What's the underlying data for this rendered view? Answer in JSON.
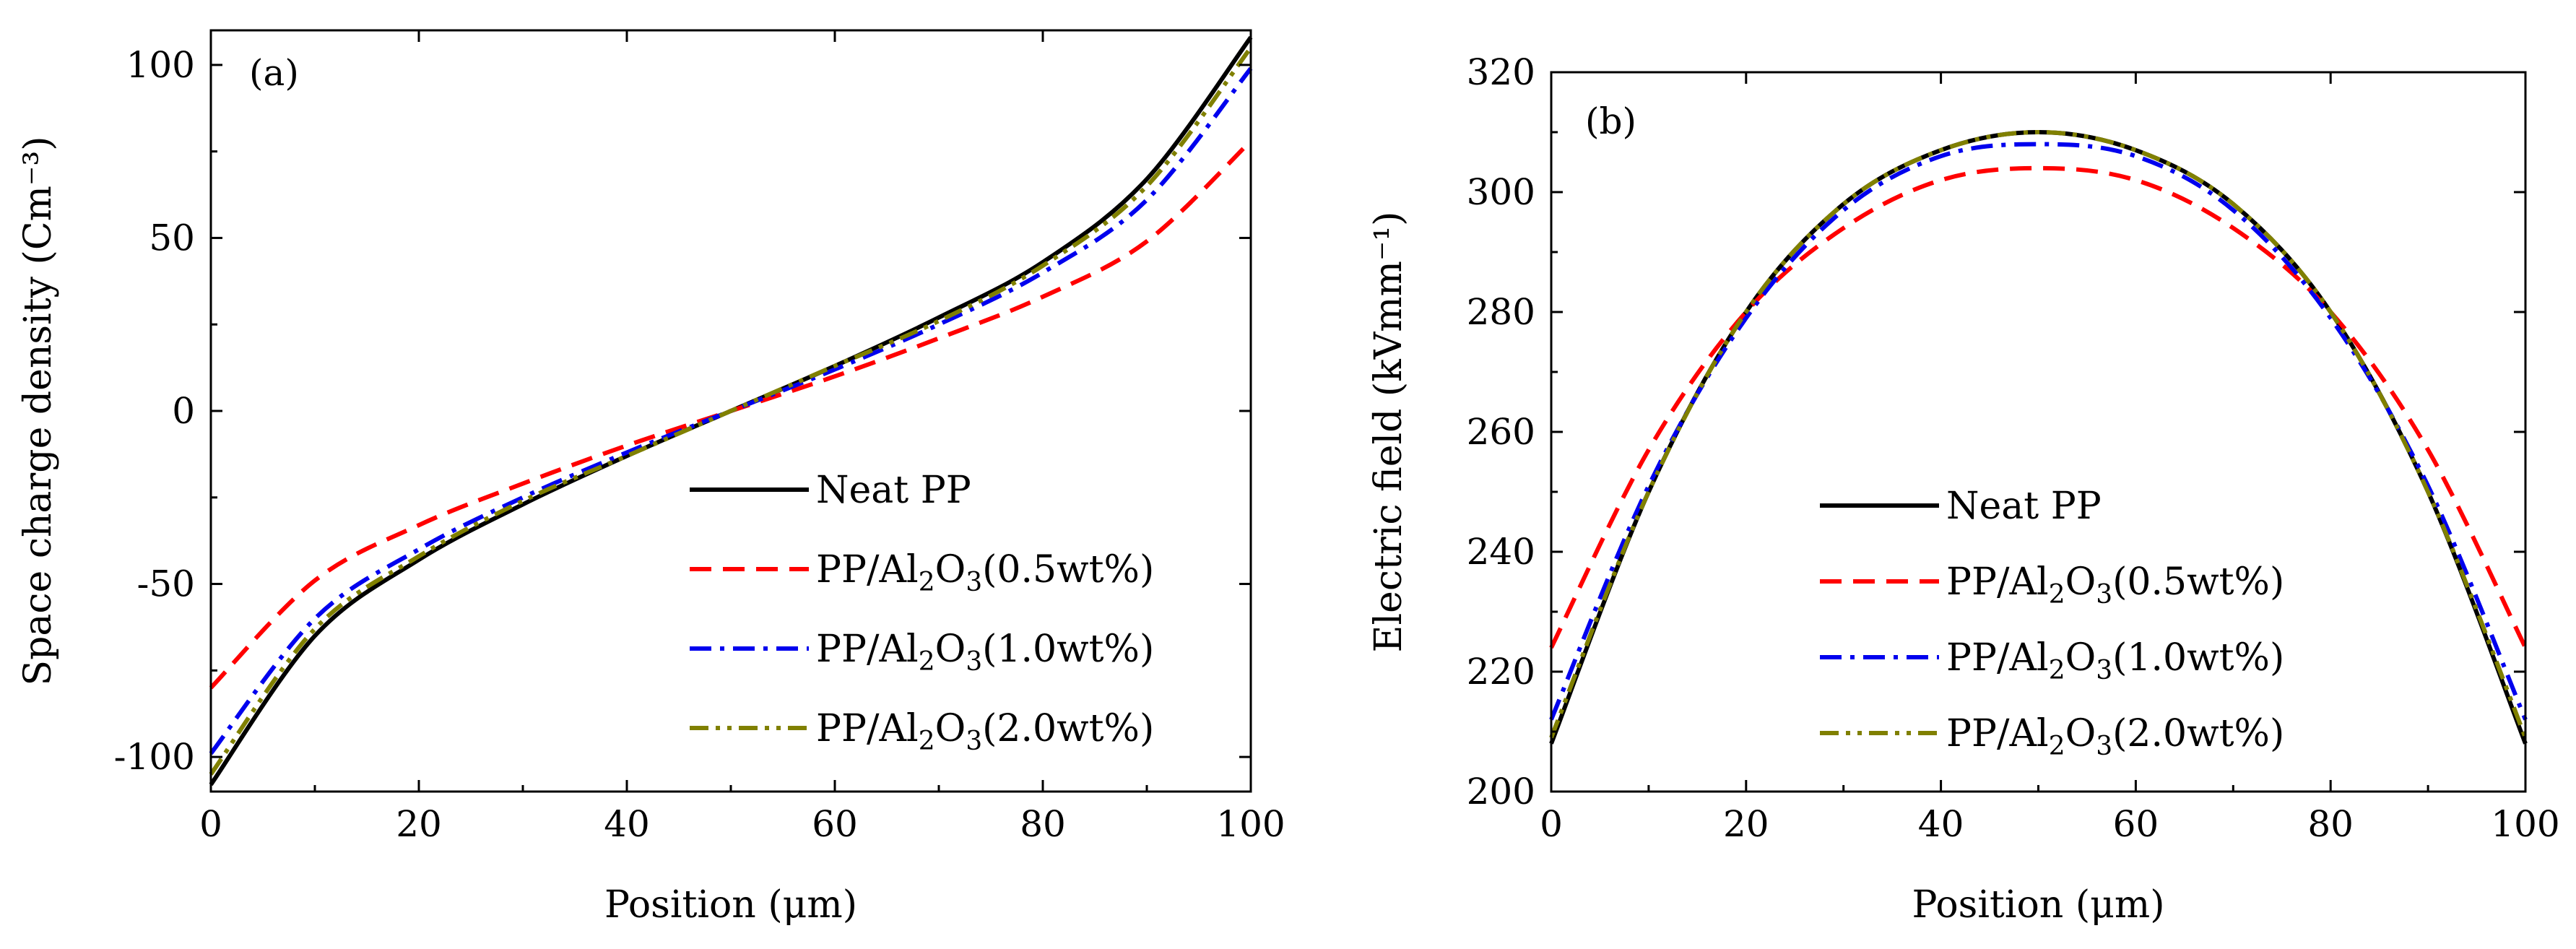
{
  "chart_data": [
    {
      "type": "line",
      "panel_label": "(a)",
      "xlabel": "Position (μm)",
      "ylabel": "Space charge density (Cm⁻³)",
      "xlim": [
        0,
        100
      ],
      "ylim": [
        -110,
        110
      ],
      "xticks": [
        0,
        20,
        40,
        60,
        80,
        100
      ],
      "yticks": [
        -100,
        -50,
        0,
        50,
        100
      ],
      "x": [
        0,
        10,
        20,
        30,
        40,
        50,
        60,
        70,
        80,
        90,
        100
      ],
      "legend_position": "lower-right",
      "series": [
        {
          "name": "Neat PP",
          "name_parts": [
            "Neat PP"
          ],
          "style": "solid",
          "color": "#000000",
          "values": [
            -108,
            -65,
            -43,
            -27,
            -13,
            0,
            13,
            27,
            43,
            67,
            108
          ]
        },
        {
          "name": "PP/Al2O3(0.5wt%)",
          "name_parts": [
            "PP/Al",
            "2",
            "O",
            "3",
            "(0.5wt%)"
          ],
          "style": "dash",
          "color": "#ff0000",
          "values": [
            -80,
            -49,
            -33,
            -21,
            -10,
            0,
            10,
            21,
            33,
            49,
            78
          ]
        },
        {
          "name": "PP/Al2O3(1.0wt%)",
          "name_parts": [
            "PP/Al",
            "2",
            "O",
            "3",
            "(1.0wt%)"
          ],
          "style": "dashdot",
          "color": "#0000ee",
          "values": [
            -99,
            -60,
            -40,
            -25,
            -12,
            0,
            12,
            25,
            40,
            61,
            99
          ]
        },
        {
          "name": "PP/Al2O3(2.0wt%)",
          "name_parts": [
            "PP/Al",
            "2",
            "O",
            "3",
            "(2.0wt%)"
          ],
          "style": "dashdotdot",
          "color": "#808000",
          "values": [
            -105,
            -63,
            -42,
            -26,
            -13,
            0,
            13,
            26,
            42,
            65,
            105
          ]
        }
      ]
    },
    {
      "type": "line",
      "panel_label": "(b)",
      "xlabel": "Position (μm)",
      "ylabel": "Electric field (kVmm⁻¹)",
      "xlim": [
        0,
        100
      ],
      "ylim": [
        200,
        320
      ],
      "xticks": [
        0,
        20,
        40,
        60,
        80,
        100
      ],
      "yticks": [
        200,
        220,
        240,
        260,
        280,
        300,
        320
      ],
      "x": [
        0,
        10,
        20,
        30,
        40,
        50,
        60,
        70,
        80,
        90,
        100
      ],
      "legend_position": "lower-center",
      "series": [
        {
          "name": "Neat PP",
          "name_parts": [
            "Neat PP"
          ],
          "style": "solid",
          "color": "#000000",
          "values": [
            208,
            250,
            280,
            298,
            307,
            310,
            307,
            298,
            280,
            250,
            208
          ]
        },
        {
          "name": "PP/Al2O3(0.5wt%)",
          "name_parts": [
            "PP/Al",
            "2",
            "O",
            "3",
            "(0.5wt%)"
          ],
          "style": "dash",
          "color": "#ff0000",
          "values": [
            224,
            257,
            280,
            294,
            302,
            304,
            302,
            294,
            280,
            257,
            224
          ]
        },
        {
          "name": "PP/Al2O3(1.0wt%)",
          "name_parts": [
            "PP/Al",
            "2",
            "O",
            "3",
            "(1.0wt%)"
          ],
          "style": "dashdot",
          "color": "#0000ee",
          "values": [
            212,
            251,
            279,
            297,
            306,
            308,
            306,
            297,
            279,
            251,
            212
          ]
        },
        {
          "name": "PP/Al2O3(2.0wt%)",
          "name_parts": [
            "PP/Al",
            "2",
            "O",
            "3",
            "(2.0wt%)"
          ],
          "style": "dashdotdot",
          "color": "#808000",
          "values": [
            209,
            250,
            280,
            298,
            307,
            310,
            307,
            298,
            280,
            250,
            209
          ]
        }
      ]
    }
  ]
}
